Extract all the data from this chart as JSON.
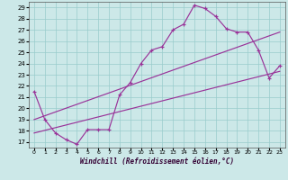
{
  "xlabel": "Windchill (Refroidissement éolien,°C)",
  "bg_color": "#cce8e8",
  "grid_color": "#99cccc",
  "line_color": "#993399",
  "xlim_min": -0.5,
  "xlim_max": 23.5,
  "ylim_min": 16.5,
  "ylim_max": 29.5,
  "xticks": [
    0,
    1,
    2,
    3,
    4,
    5,
    6,
    7,
    8,
    9,
    10,
    11,
    12,
    13,
    14,
    15,
    16,
    17,
    18,
    19,
    20,
    21,
    22,
    23
  ],
  "yticks": [
    17,
    18,
    19,
    20,
    21,
    22,
    23,
    24,
    25,
    26,
    27,
    28,
    29
  ],
  "main_x": [
    0,
    1,
    2,
    3,
    4,
    5,
    6,
    7,
    8,
    9,
    10,
    11,
    12,
    13,
    14,
    15,
    16,
    17,
    18,
    19,
    20,
    21,
    22,
    23
  ],
  "main_y": [
    21.5,
    19.0,
    17.8,
    17.2,
    16.8,
    18.1,
    18.1,
    18.1,
    21.2,
    22.3,
    24.0,
    25.2,
    25.5,
    27.0,
    27.5,
    29.2,
    28.9,
    28.2,
    27.1,
    26.8,
    26.8,
    25.2,
    22.7,
    23.8
  ],
  "trend1_x": [
    0,
    23
  ],
  "trend1_y": [
    17.8,
    23.3
  ],
  "trend2_x": [
    0,
    23
  ],
  "trend2_y": [
    19.0,
    26.8
  ]
}
